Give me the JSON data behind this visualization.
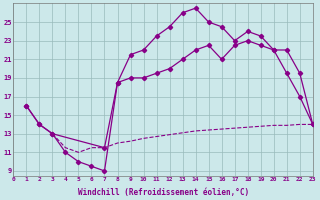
{
  "bg_color": "#cce8ea",
  "grid_color": "#99bbbb",
  "line_color": "#880088",
  "xlabel": "Windchill (Refroidissement éolien,°C)",
  "xlim": [
    0,
    23
  ],
  "ylim": [
    8.5,
    27
  ],
  "yticks": [
    9,
    11,
    13,
    15,
    17,
    19,
    21,
    23,
    25
  ],
  "xticks": [
    0,
    1,
    2,
    3,
    4,
    5,
    6,
    7,
    8,
    9,
    10,
    11,
    12,
    13,
    14,
    15,
    16,
    17,
    18,
    19,
    20,
    21,
    22,
    23
  ],
  "line1_x": [
    1,
    2,
    3,
    4,
    5,
    6,
    7,
    8,
    9,
    10,
    11,
    12,
    13,
    14,
    15,
    16,
    17,
    18,
    19,
    20,
    21,
    22,
    23
  ],
  "line1_y": [
    16.0,
    14.0,
    13.0,
    11.0,
    10.0,
    9.5,
    9.0,
    18.5,
    21.5,
    22.0,
    23.5,
    24.5,
    26.0,
    26.5,
    25.0,
    24.5,
    23.0,
    24.0,
    23.5,
    22.0,
    19.5,
    17.0,
    14.0
  ],
  "line2_x": [
    1,
    2,
    3,
    7,
    8,
    9,
    10,
    11,
    12,
    13,
    14,
    15,
    16,
    17,
    18,
    19,
    20,
    21,
    22,
    23
  ],
  "line2_y": [
    16.0,
    14.0,
    13.0,
    11.5,
    18.5,
    19.0,
    19.0,
    19.5,
    20.0,
    21.0,
    22.0,
    22.5,
    21.0,
    22.5,
    23.0,
    22.5,
    22.0,
    22.0,
    19.5,
    14.0
  ],
  "line3_x": [
    3,
    4,
    5,
    6,
    7,
    8,
    9,
    10,
    11,
    12,
    13,
    14,
    15,
    16,
    17,
    18,
    19,
    20,
    21,
    22,
    23
  ],
  "line3_y": [
    13.0,
    11.5,
    11.0,
    11.5,
    11.5,
    12.0,
    12.2,
    12.5,
    12.7,
    12.9,
    13.1,
    13.3,
    13.4,
    13.5,
    13.6,
    13.7,
    13.8,
    13.9,
    13.9,
    14.0,
    14.0
  ]
}
